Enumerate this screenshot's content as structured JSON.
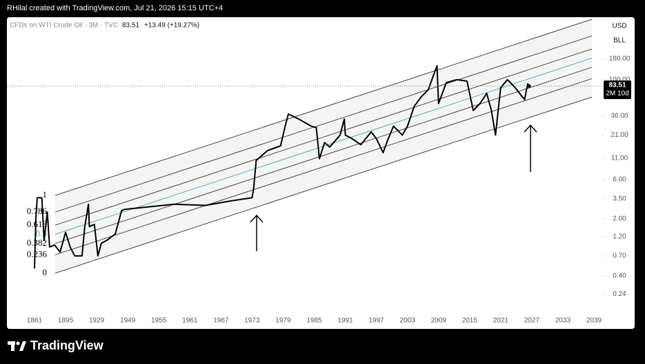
{
  "header": {
    "attribution": "RHilal created with TradingView.com, Jul 21, 2026 15:15 UTC+4"
  },
  "footer": {
    "brand": "TradingView"
  },
  "chart_data": {
    "type": "line",
    "symbol": "CFDs on WTI Crude Oil · 3M · TVC",
    "last_value": 83.51,
    "change_label": "+13.49 (+19.27%)",
    "currency": "USD",
    "unit": "BLL",
    "countdown": "2M 10d",
    "log_scale": true,
    "color": "#000000",
    "x": [
      1861,
      1862.5,
      1864,
      1869,
      1871.5,
      1875,
      1877.5,
      1883,
      1889,
      1895,
      1900,
      1905,
      1913,
      1916,
      1920,
      1921,
      1926.5,
      1929.8,
      1932,
      1936,
      1941,
      1945,
      1947,
      1958,
      1964,
      1969,
      1973,
      1973.3,
      1973.8,
      1976,
      1978.5,
      1979.4,
      1980,
      1982,
      1984.4,
      1985.4,
      1986,
      1987,
      1988,
      1990,
      1990.8,
      1991,
      1992.3,
      1994,
      1996,
      1997,
      1998.3,
      1999,
      2000.3,
      2002,
      2003,
      2004.3,
      2005.7,
      2007,
      2008.7,
      2009,
      2010.5,
      2012.5,
      2014.5,
      2015.7,
      2017,
      2018.3,
      2019.2,
      2020,
      2021,
      2022.3,
      2023.7,
      2025.6,
      2026.2,
      2026.5
    ],
    "values": [
      0.49,
      2.0,
      3.6,
      3.6,
      1.08,
      2.4,
      0.9,
      0.95,
      0.78,
      1.36,
      0.9,
      0.7,
      0.7,
      1.6,
      3.0,
      1.6,
      1.7,
      0.7,
      1.0,
      1.1,
      1.3,
      2.5,
      2.6,
      3.0,
      2.9,
      3.3,
      3.6,
      4.6,
      10.3,
      13.6,
      15.5,
      27,
      38,
      33,
      27,
      26,
      10.8,
      17,
      15,
      21,
      33,
      21,
      19,
      16,
      23,
      19,
      12.8,
      17,
      27,
      21,
      27,
      47,
      62,
      75,
      148,
      51,
      92,
      100,
      96,
      42,
      51,
      68,
      42,
      21,
      80,
      100,
      81,
      57,
      89,
      83.51
    ],
    "xticks": [
      1861,
      1895,
      1929,
      1949,
      1955,
      1961,
      1967,
      1973,
      1979,
      1985,
      1991,
      1997,
      2003,
      2009,
      2015,
      2021,
      2027,
      2033,
      2039
    ],
    "ylim": [
      0.14,
      580
    ],
    "yticks": [
      {
        "value": 180,
        "label": "180.00"
      },
      {
        "value": 100,
        "label": "100.00"
      },
      {
        "value": 36,
        "label": "36.00"
      },
      {
        "value": 21,
        "label": "21.00"
      },
      {
        "value": 11,
        "label": "11.00"
      },
      {
        "value": 6,
        "label": "6.00"
      },
      {
        "value": 3.5,
        "label": "3.50"
      },
      {
        "value": 2,
        "label": "2.00"
      },
      {
        "value": 1.2,
        "label": "1.20"
      },
      {
        "value": 0.7,
        "label": "0.70"
      },
      {
        "value": 0.4,
        "label": "0.40"
      },
      {
        "value": 0.24,
        "label": "0.24"
      }
    ],
    "fib_levels": [
      0,
      0.236,
      0.382,
      0.5,
      0.618,
      0.786,
      1
    ],
    "fib_color": "#444444",
    "fib_mid_color": "#4db6ac"
  }
}
